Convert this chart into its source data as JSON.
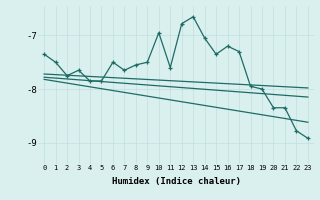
{
  "xlabel": "Humidex (Indice chaleur)",
  "bg_color": "#d9f0ef",
  "grid_color": "#c0dede",
  "line_color": "#1e6b65",
  "xlim": [
    -0.5,
    23.5
  ],
  "ylim": [
    -9.4,
    -6.45
  ],
  "yticks": [
    -9,
    -8,
    -7
  ],
  "xticks": [
    0,
    1,
    2,
    3,
    4,
    5,
    6,
    7,
    8,
    9,
    10,
    11,
    12,
    13,
    14,
    15,
    16,
    17,
    18,
    19,
    20,
    21,
    22,
    23
  ],
  "line1_x": [
    0,
    1,
    2,
    3,
    4,
    5,
    6,
    7,
    8,
    9,
    10,
    11,
    12,
    13,
    14,
    15,
    16,
    17,
    18,
    19,
    20,
    21,
    22,
    23
  ],
  "line1_y": [
    -7.35,
    -7.5,
    -7.75,
    -7.65,
    -7.85,
    -7.85,
    -7.5,
    -7.65,
    -7.55,
    -7.5,
    -6.95,
    -7.6,
    -6.78,
    -6.65,
    -7.05,
    -7.35,
    -7.2,
    -7.3,
    -7.95,
    -8.0,
    -8.35,
    -8.35,
    -8.78,
    -8.92
  ],
  "line2_x": [
    0,
    23
  ],
  "line2_y": [
    -7.72,
    -7.98
  ],
  "line3_x": [
    0,
    23
  ],
  "line3_y": [
    -7.78,
    -8.15
  ],
  "line4_x": [
    0,
    23
  ],
  "line4_y": [
    -7.82,
    -8.62
  ]
}
